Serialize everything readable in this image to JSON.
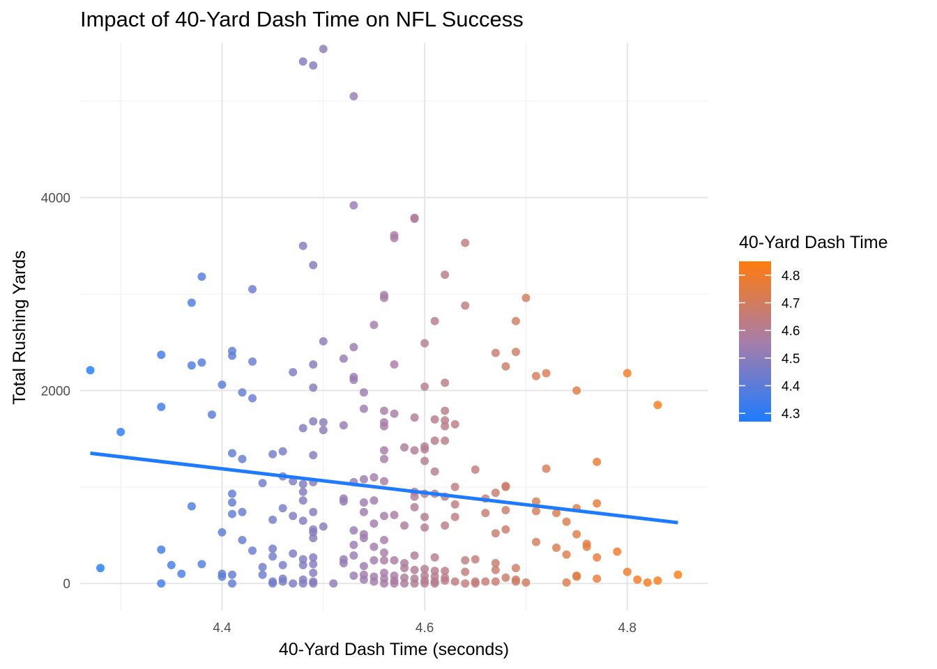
{
  "chart_data": {
    "type": "scatter",
    "title": "Impact of 40-Yard Dash Time on NFL Success",
    "xlabel": "40-Yard Dash Time (seconds)",
    "ylabel": "Total Rushing Yards",
    "xlim": [
      4.26,
      4.88
    ],
    "ylim": [
      -280,
      5600
    ],
    "x_ticks": [
      4.4,
      4.6,
      4.8
    ],
    "x_tick_labels": [
      "4.4",
      "4.6",
      "4.8"
    ],
    "y_ticks": [
      0,
      2000,
      4000
    ],
    "y_tick_labels": [
      "0",
      "2000",
      "4000"
    ],
    "grid": true,
    "legend": {
      "title": "40-Yard Dash Time",
      "position": "right",
      "type": "colorbar",
      "range": [
        4.27,
        4.85
      ],
      "ticks": [
        4.3,
        4.4,
        4.5,
        4.6,
        4.7,
        4.8
      ],
      "tick_labels": [
        "4.3",
        "4.4",
        "4.5",
        "4.6",
        "4.7",
        "4.8"
      ]
    },
    "color_low": "#1E7BFF",
    "color_mid": "#A77DA8",
    "color_high": "#FF7B0F",
    "trend_line": {
      "x": [
        4.27,
        4.85
      ],
      "y": [
        1350,
        630
      ],
      "color": "#1E7BFF"
    },
    "points": [
      [
        4.27,
        2210
      ],
      [
        4.28,
        160
      ],
      [
        4.3,
        1570
      ],
      [
        4.34,
        2370
      ],
      [
        4.34,
        1830
      ],
      [
        4.34,
        350
      ],
      [
        4.34,
        0
      ],
      [
        4.35,
        190
      ],
      [
        4.36,
        100
      ],
      [
        4.37,
        2910
      ],
      [
        4.37,
        2260
      ],
      [
        4.37,
        800
      ],
      [
        4.38,
        3180
      ],
      [
        4.38,
        2290
      ],
      [
        4.38,
        200
      ],
      [
        4.39,
        1750
      ],
      [
        4.4,
        2060
      ],
      [
        4.4,
        530
      ],
      [
        4.4,
        100
      ],
      [
        4.4,
        70
      ],
      [
        4.41,
        2410
      ],
      [
        4.41,
        2360
      ],
      [
        4.41,
        1350
      ],
      [
        4.41,
        930
      ],
      [
        4.41,
        840
      ],
      [
        4.41,
        720
      ],
      [
        4.41,
        90
      ],
      [
        4.41,
        0
      ],
      [
        4.42,
        1980
      ],
      [
        4.42,
        1290
      ],
      [
        4.42,
        740
      ],
      [
        4.42,
        450
      ],
      [
        4.43,
        3050
      ],
      [
        4.43,
        2300
      ],
      [
        4.43,
        1920
      ],
      [
        4.43,
        340
      ],
      [
        4.44,
        1040
      ],
      [
        4.44,
        170
      ],
      [
        4.44,
        90
      ],
      [
        4.45,
        1340
      ],
      [
        4.45,
        660
      ],
      [
        4.45,
        360
      ],
      [
        4.45,
        280
      ],
      [
        4.45,
        20
      ],
      [
        4.45,
        0
      ],
      [
        4.46,
        1370
      ],
      [
        4.46,
        1110
      ],
      [
        4.46,
        780
      ],
      [
        4.46,
        190
      ],
      [
        4.46,
        50
      ],
      [
        4.46,
        20
      ],
      [
        4.47,
        2190
      ],
      [
        4.47,
        1060
      ],
      [
        4.47,
        700
      ],
      [
        4.47,
        310
      ],
      [
        4.47,
        0
      ],
      [
        4.48,
        5410
      ],
      [
        4.48,
        3500
      ],
      [
        4.48,
        1610
      ],
      [
        4.48,
        1030
      ],
      [
        4.48,
        950
      ],
      [
        4.48,
        860
      ],
      [
        4.48,
        650
      ],
      [
        4.48,
        250
      ],
      [
        4.48,
        190
      ],
      [
        4.48,
        40
      ],
      [
        4.48,
        0
      ],
      [
        4.49,
        5370
      ],
      [
        4.49,
        3300
      ],
      [
        4.49,
        2270
      ],
      [
        4.49,
        2030
      ],
      [
        4.49,
        1680
      ],
      [
        4.49,
        1330
      ],
      [
        4.49,
        1050
      ],
      [
        4.49,
        740
      ],
      [
        4.49,
        560
      ],
      [
        4.49,
        530
      ],
      [
        4.49,
        470
      ],
      [
        4.49,
        270
      ],
      [
        4.49,
        200
      ],
      [
        4.49,
        110
      ],
      [
        4.49,
        20
      ],
      [
        4.49,
        0
      ],
      [
        4.5,
        5540
      ],
      [
        4.5,
        2510
      ],
      [
        4.5,
        1670
      ],
      [
        4.5,
        1590
      ],
      [
        4.5,
        590
      ],
      [
        4.51,
        0
      ],
      [
        4.52,
        2330
      ],
      [
        4.52,
        1640
      ],
      [
        4.52,
        880
      ],
      [
        4.52,
        850
      ],
      [
        4.52,
        250
      ],
      [
        4.52,
        210
      ],
      [
        4.53,
        5050
      ],
      [
        4.53,
        3920
      ],
      [
        4.53,
        2450
      ],
      [
        4.53,
        2140
      ],
      [
        4.53,
        2110
      ],
      [
        4.53,
        1050
      ],
      [
        4.53,
        550
      ],
      [
        4.53,
        400
      ],
      [
        4.53,
        290
      ],
      [
        4.53,
        80
      ],
      [
        4.54,
        1980
      ],
      [
        4.54,
        1810
      ],
      [
        4.54,
        1080
      ],
      [
        4.54,
        840
      ],
      [
        4.54,
        740
      ],
      [
        4.54,
        510
      ],
      [
        4.54,
        470
      ],
      [
        4.54,
        180
      ],
      [
        4.54,
        90
      ],
      [
        4.54,
        40
      ],
      [
        4.55,
        2680
      ],
      [
        4.55,
        1100
      ],
      [
        4.55,
        860
      ],
      [
        4.55,
        620
      ],
      [
        4.55,
        380
      ],
      [
        4.55,
        240
      ],
      [
        4.55,
        70
      ],
      [
        4.55,
        20
      ],
      [
        4.56,
        2990
      ],
      [
        4.56,
        2960
      ],
      [
        4.56,
        1790
      ],
      [
        4.56,
        1670
      ],
      [
        4.56,
        1630
      ],
      [
        4.56,
        1380
      ],
      [
        4.56,
        1290
      ],
      [
        4.56,
        1060
      ],
      [
        4.56,
        700
      ],
      [
        4.56,
        450
      ],
      [
        4.56,
        320
      ],
      [
        4.56,
        240
      ],
      [
        4.56,
        110
      ],
      [
        4.56,
        50
      ],
      [
        4.56,
        0
      ],
      [
        4.57,
        3610
      ],
      [
        4.57,
        3580
      ],
      [
        4.57,
        2270
      ],
      [
        4.57,
        1760
      ],
      [
        4.57,
        710
      ],
      [
        4.57,
        240
      ],
      [
        4.57,
        80
      ],
      [
        4.57,
        30
      ],
      [
        4.57,
        0
      ],
      [
        4.58,
        1410
      ],
      [
        4.58,
        600
      ],
      [
        4.58,
        210
      ],
      [
        4.58,
        160
      ],
      [
        4.58,
        60
      ],
      [
        4.58,
        0
      ],
      [
        4.59,
        3790
      ],
      [
        4.59,
        3780
      ],
      [
        4.59,
        1720
      ],
      [
        4.59,
        1380
      ],
      [
        4.59,
        950
      ],
      [
        4.59,
        900
      ],
      [
        4.59,
        790
      ],
      [
        4.59,
        290
      ],
      [
        4.59,
        140
      ],
      [
        4.59,
        50
      ],
      [
        4.59,
        0
      ],
      [
        4.6,
        2490
      ],
      [
        4.6,
        2040
      ],
      [
        4.6,
        1420
      ],
      [
        4.6,
        1390
      ],
      [
        4.6,
        1270
      ],
      [
        4.6,
        930
      ],
      [
        4.6,
        690
      ],
      [
        4.6,
        580
      ],
      [
        4.6,
        150
      ],
      [
        4.6,
        80
      ],
      [
        4.6,
        30
      ],
      [
        4.6,
        0
      ],
      [
        4.61,
        2720
      ],
      [
        4.61,
        1700
      ],
      [
        4.61,
        1480
      ],
      [
        4.61,
        1160
      ],
      [
        4.61,
        930
      ],
      [
        4.61,
        270
      ],
      [
        4.61,
        130
      ],
      [
        4.61,
        70
      ],
      [
        4.61,
        20
      ],
      [
        4.61,
        0
      ],
      [
        4.62,
        3200
      ],
      [
        4.62,
        2080
      ],
      [
        4.62,
        1790
      ],
      [
        4.62,
        1690
      ],
      [
        4.62,
        1630
      ],
      [
        4.62,
        1480
      ],
      [
        4.62,
        900
      ],
      [
        4.62,
        600
      ],
      [
        4.62,
        130
      ],
      [
        4.62,
        60
      ],
      [
        4.62,
        30
      ],
      [
        4.63,
        1650
      ],
      [
        4.63,
        1000
      ],
      [
        4.63,
        820
      ],
      [
        4.63,
        690
      ],
      [
        4.63,
        20
      ],
      [
        4.64,
        3530
      ],
      [
        4.64,
        2880
      ],
      [
        4.64,
        240
      ],
      [
        4.64,
        120
      ],
      [
        4.64,
        0
      ],
      [
        4.65,
        1180
      ],
      [
        4.65,
        250
      ],
      [
        4.65,
        20
      ],
      [
        4.65,
        0
      ],
      [
        4.66,
        880
      ],
      [
        4.66,
        730
      ],
      [
        4.66,
        20
      ],
      [
        4.67,
        2390
      ],
      [
        4.67,
        940
      ],
      [
        4.67,
        520
      ],
      [
        4.67,
        210
      ],
      [
        4.67,
        140
      ],
      [
        4.67,
        20
      ],
      [
        4.68,
        2250
      ],
      [
        4.68,
        1010
      ],
      [
        4.68,
        1000
      ],
      [
        4.68,
        760
      ],
      [
        4.68,
        560
      ],
      [
        4.68,
        60
      ],
      [
        4.69,
        2720
      ],
      [
        4.69,
        2400
      ],
      [
        4.69,
        160
      ],
      [
        4.69,
        40
      ],
      [
        4.69,
        20
      ],
      [
        4.7,
        2960
      ],
      [
        4.7,
        10
      ],
      [
        4.71,
        2150
      ],
      [
        4.71,
        850
      ],
      [
        4.71,
        750
      ],
      [
        4.71,
        430
      ],
      [
        4.72,
        2180
      ],
      [
        4.72,
        1190
      ],
      [
        4.73,
        370
      ],
      [
        4.73,
        730
      ],
      [
        4.74,
        640
      ],
      [
        4.74,
        300
      ],
      [
        4.74,
        10
      ],
      [
        4.75,
        2000
      ],
      [
        4.75,
        780
      ],
      [
        4.75,
        510
      ],
      [
        4.75,
        80
      ],
      [
        4.75,
        70
      ],
      [
        4.76,
        410
      ],
      [
        4.76,
        380
      ],
      [
        4.77,
        1260
      ],
      [
        4.77,
        830
      ],
      [
        4.77,
        270
      ],
      [
        4.77,
        50
      ],
      [
        4.79,
        330
      ],
      [
        4.8,
        2180
      ],
      [
        4.8,
        120
      ],
      [
        4.81,
        40
      ],
      [
        4.82,
        10
      ],
      [
        4.83,
        1850
      ],
      [
        4.83,
        30
      ],
      [
        4.85,
        90
      ]
    ]
  }
}
